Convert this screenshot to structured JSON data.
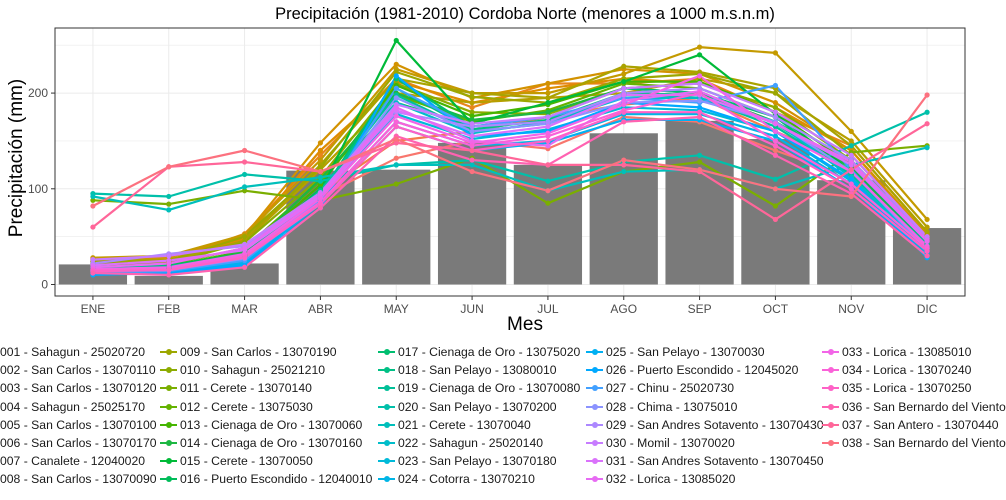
{
  "chart_data": {
    "type": "bar+line",
    "title": "Precipitación (1981-2010) Cordoba Norte (menores a 1000 m.s.n.m)",
    "xlabel": "Mes",
    "ylabel": "Precipitación (mm)",
    "categories": [
      "ENE",
      "FEB",
      "MAR",
      "ABR",
      "MAY",
      "JUN",
      "JUL",
      "AGO",
      "SEP",
      "OCT",
      "NOV",
      "DIC"
    ],
    "y_ticks": [
      0,
      100,
      200
    ],
    "ylim": [
      -12,
      268
    ],
    "grid": true,
    "legend_position": "bottom",
    "bars": {
      "color": "#7a7a7a",
      "values": [
        21,
        9,
        22,
        119,
        120,
        148,
        125,
        158,
        171,
        152,
        109,
        59
      ]
    },
    "series": [
      {
        "name": "001 - Sahagun - 25020720",
        "color": "#F8766D",
        "values": [
          20,
          19,
          24,
          92,
          132,
          150,
          142,
          175,
          170,
          140,
          112,
          45
        ]
      },
      {
        "name": "002 - San Carlos - 13070110",
        "color": "#F47D4B",
        "values": [
          22,
          21,
          30,
          96,
          150,
          160,
          175,
          188,
          195,
          160,
          125,
          48
        ]
      },
      {
        "name": "003 - San Carlos - 13070120",
        "color": "#E7861B",
        "values": [
          27,
          25,
          53,
          135,
          215,
          185,
          210,
          210,
          215,
          180,
          145,
          55
        ]
      },
      {
        "name": "004 - Sahagun - 25025170",
        "color": "#DE8C00",
        "values": [
          24,
          23,
          48,
          140,
          212,
          190,
          205,
          215,
          210,
          185,
          140,
          50
        ]
      },
      {
        "name": "005 - San Carlos - 13070100",
        "color": "#D39200",
        "values": [
          26,
          28,
          51,
          148,
          230,
          195,
          210,
          225,
          220,
          190,
          140,
          52
        ]
      },
      {
        "name": "006 - San Carlos - 13070170",
        "color": "#C49A00",
        "values": [
          28,
          30,
          52,
          130,
          225,
          200,
          200,
          220,
          248,
          242,
          160,
          68
        ]
      },
      {
        "name": "007 - Canalete - 12040020",
        "color": "#B79F00",
        "values": [
          25,
          26,
          45,
          120,
          200,
          190,
          195,
          200,
          215,
          200,
          150,
          60
        ]
      },
      {
        "name": "008 - San Carlos - 13070090",
        "color": "#AAA300",
        "values": [
          23,
          24,
          46,
          125,
          215,
          200,
          195,
          228,
          222,
          205,
          145,
          55
        ]
      },
      {
        "name": "009 - San Carlos - 13070190",
        "color": "#9CA700",
        "values": [
          24,
          25,
          50,
          122,
          222,
          196,
          190,
          215,
          220,
          200,
          135,
          50
        ]
      },
      {
        "name": "010 - Sahagun - 25021210",
        "color": "#8CAB00",
        "values": [
          22,
          22,
          44,
          112,
          210,
          180,
          178,
          205,
          210,
          185,
          130,
          48
        ]
      },
      {
        "name": "011 - Cerete - 13070140",
        "color": "#7AAE00",
        "values": [
          88,
          84,
          98,
          88,
          105,
          132,
          85,
          118,
          128,
          82,
          138,
          145
        ]
      },
      {
        "name": "012 - Cerete - 13075030",
        "color": "#64B200",
        "values": [
          20,
          21,
          38,
          108,
          198,
          170,
          182,
          210,
          205,
          175,
          130,
          45
        ]
      },
      {
        "name": "013 - Cienaga de Oro - 13070060",
        "color": "#45B500",
        "values": [
          18,
          19,
          35,
          104,
          208,
          176,
          188,
          212,
          212,
          180,
          125,
          44
        ]
      },
      {
        "name": "014 - Cienaga de Oro - 13070160",
        "color": "#1CB742",
        "values": [
          19,
          18,
          34,
          110,
          200,
          172,
          180,
          205,
          200,
          170,
          122,
          42
        ]
      },
      {
        "name": "015 - Cerete - 13070050",
        "color": "#00BA38",
        "values": [
          17,
          17,
          30,
          98,
          255,
          168,
          190,
          212,
          240,
          178,
          118,
          40
        ]
      },
      {
        "name": "016 - Puerto Escondido - 12040010",
        "color": "#00BC59",
        "values": [
          18,
          20,
          32,
          100,
          190,
          165,
          170,
          200,
          195,
          170,
          125,
          42
        ]
      },
      {
        "name": "017 - Cienaga de Oro - 13075020",
        "color": "#00BE70",
        "values": [
          16,
          17,
          29,
          94,
          215,
          165,
          175,
          205,
          200,
          175,
          115,
          40
        ]
      },
      {
        "name": "018 - San Pelayo - 13080010",
        "color": "#00C085",
        "values": [
          17,
          18,
          31,
          96,
          205,
          162,
          172,
          200,
          198,
          168,
          118,
          40
        ]
      },
      {
        "name": "019 - Cienaga de Oro - 13070080",
        "color": "#00C098",
        "values": [
          18,
          19,
          30,
          98,
          198,
          160,
          168,
          198,
          195,
          165,
          115,
          42
        ]
      },
      {
        "name": "020 - San Pelayo - 13070200",
        "color": "#00C0AA",
        "values": [
          95,
          92,
          115,
          108,
          125,
          130,
          108,
          128,
          135,
          110,
          145,
          180
        ]
      },
      {
        "name": "021 - Cerete - 13070040",
        "color": "#00BFBB",
        "values": [
          92,
          78,
          102,
          112,
          125,
          125,
          98,
          118,
          120,
          100,
          125,
          143
        ]
      },
      {
        "name": "022 - Sahagun - 25020140",
        "color": "#00BDCA",
        "values": [
          15,
          16,
          28,
          92,
          190,
          158,
          170,
          195,
          195,
          170,
          112,
          38
        ]
      },
      {
        "name": "023 - San Pelayo - 13070180",
        "color": "#00BAD9",
        "values": [
          14,
          15,
          26,
          90,
          178,
          152,
          162,
          185,
          182,
          160,
          108,
          36
        ]
      },
      {
        "name": "024 - Cotorra - 13070210",
        "color": "#00B5E6",
        "values": [
          13,
          14,
          24,
          86,
          170,
          145,
          150,
          178,
          178,
          155,
          105,
          33
        ]
      },
      {
        "name": "025 - San Pelayo - 13070030",
        "color": "#00B0F2",
        "values": [
          12,
          13,
          22,
          84,
          165,
          140,
          148,
          172,
          172,
          150,
          100,
          30
        ]
      },
      {
        "name": "026 - Puerto Escondido - 12045020",
        "color": "#00A9FF",
        "values": [
          10,
          12,
          20,
          80,
          218,
          155,
          160,
          190,
          185,
          160,
          110,
          28
        ]
      },
      {
        "name": "027 - Chinu - 25020730",
        "color": "#42A0FF",
        "values": [
          12,
          14,
          25,
          88,
          205,
          165,
          175,
          195,
          190,
          208,
          120,
          35
        ]
      },
      {
        "name": "028 - Chima - 13075010",
        "color": "#8B93FF",
        "values": [
          14,
          15,
          27,
          90,
          195,
          160,
          168,
          190,
          192,
          170,
          118,
          38
        ]
      },
      {
        "name": "029 - San Andres Sotavento - 13070430",
        "color": "#AC88FF",
        "values": [
          22,
          32,
          40,
          95,
          180,
          165,
          170,
          200,
          205,
          175,
          130,
          48
        ]
      },
      {
        "name": "030 - Momil - 13070020",
        "color": "#C77CFF",
        "values": [
          26,
          30,
          42,
          96,
          188,
          168,
          175,
          205,
          210,
          180,
          135,
          50
        ]
      },
      {
        "name": "031 - San Andres Sotavento - 13070450",
        "color": "#DA72FB",
        "values": [
          20,
          25,
          36,
          92,
          182,
          155,
          165,
          198,
          198,
          168,
          125,
          45
        ]
      },
      {
        "name": "032 - Lorica - 13085020",
        "color": "#E76BF3",
        "values": [
          18,
          22,
          38,
          94,
          185,
          150,
          145,
          192,
          202,
          168,
          128,
          46
        ]
      },
      {
        "name": "033 - Lorica - 13085010",
        "color": "#F265E7",
        "values": [
          16,
          18,
          32,
          90,
          176,
          148,
          158,
          188,
          218,
          160,
          118,
          40
        ]
      },
      {
        "name": "034 - Lorica - 13070240",
        "color": "#FA62D8",
        "values": [
          15,
          16,
          30,
          86,
          170,
          145,
          155,
          182,
          200,
          150,
          105,
          38
        ]
      },
      {
        "name": "035 - Lorica - 13070250",
        "color": "#FE61C6",
        "values": [
          14,
          15,
          28,
          84,
          165,
          140,
          150,
          180,
          180,
          145,
          100,
          35
        ]
      },
      {
        "name": "036 - San Bernardo del Viento",
        "color": "#FF62B1",
        "values": [
          12,
          10,
          18,
          80,
          155,
          130,
          125,
          170,
          175,
          135,
          95,
          30
        ]
      },
      {
        "name": "037 - San Antero - 13070440",
        "color": "#FF6699",
        "values": [
          60,
          123,
          128,
          118,
          148,
          140,
          125,
          125,
          118,
          68,
          120,
          168
        ]
      },
      {
        "name": "038 - San Bernardo del Viento",
        "color": "#FC717F",
        "values": [
          82,
          123,
          140,
          118,
          152,
          118,
          98,
          130,
          120,
          100,
          92,
          198
        ]
      }
    ]
  }
}
